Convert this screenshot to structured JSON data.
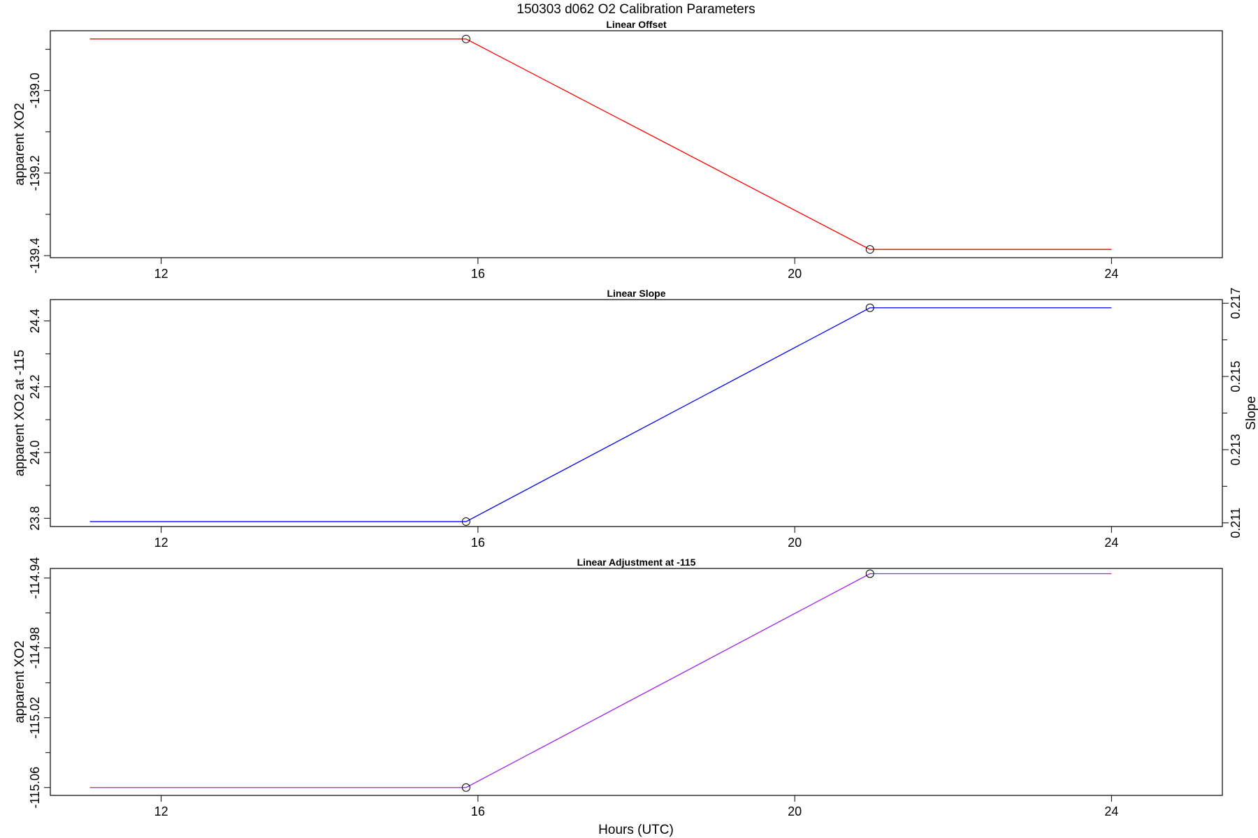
{
  "title": "150303   d062   O2 Calibration Parameters",
  "xlabel": "Hours (UTC)",
  "colors": {
    "offset": "#ff0000",
    "slope": "#0000ff",
    "adjustment": "#a020f0",
    "points": "#000000",
    "frame": "#000000"
  },
  "chart_data": [
    {
      "type": "line",
      "title": "Linear Offset",
      "xlabel": "",
      "ylabel": "apparent XO2",
      "xlim": [
        10.6,
        25.4
      ],
      "ylim": [
        -139.405,
        -138.855
      ],
      "xticks": [
        12,
        16,
        20,
        24
      ],
      "yticks": [
        -139.4,
        -139.2,
        -139.0
      ],
      "yminor": [
        -139.3,
        -139.1,
        -138.9
      ],
      "ytick_labels": [
        "-139.4",
        "-139.2",
        "-139.0"
      ],
      "series": [
        {
          "x": [
            11.1,
            15.85,
            20.95,
            24.0
          ],
          "y": [
            -138.875,
            -138.875,
            -139.385,
            -139.385
          ]
        }
      ],
      "points": {
        "x": [
          15.85,
          20.95
        ],
        "y": [
          -138.875,
          -139.385
        ]
      }
    },
    {
      "type": "line",
      "title": "Linear Slope",
      "xlabel": "",
      "ylabel": "apparent XO2 at -115",
      "ylabel_right": "Slope",
      "xlim": [
        10.6,
        25.4
      ],
      "ylim": [
        23.775,
        24.465
      ],
      "xticks": [
        12,
        16,
        20,
        24
      ],
      "yticks": [
        23.8,
        24.0,
        24.2,
        24.4
      ],
      "yminor": [
        23.9,
        24.1,
        24.3
      ],
      "ytick_labels": [
        "23.8",
        "24.0",
        "24.2",
        "24.4"
      ],
      "right_axis": {
        "lim": [
          0.2109,
          0.2171
        ],
        "ticks": [
          0.211,
          0.213,
          0.215,
          0.217
        ],
        "minor": [
          0.212,
          0.214,
          0.216
        ],
        "labels": [
          "0.211",
          "0.213",
          "0.215",
          "0.217"
        ]
      },
      "series": [
        {
          "x": [
            11.1,
            15.85,
            20.95,
            24.0
          ],
          "y": [
            23.79,
            23.79,
            24.44,
            24.44
          ]
        }
      ],
      "points": {
        "x": [
          15.85,
          20.95
        ],
        "y": [
          23.79,
          24.44
        ]
      }
    },
    {
      "type": "line",
      "title": "Linear Adjustment at -115",
      "xlabel": "Hours (UTC)",
      "ylabel": "apparent XO2",
      "xlim": [
        10.6,
        25.4
      ],
      "ylim": [
        -115.0645,
        -114.9345
      ],
      "xticks": [
        12,
        16,
        20,
        24
      ],
      "yticks": [
        -115.06,
        -115.02,
        -114.98,
        -114.94
      ],
      "yminor": [
        -115.04,
        -115.0,
        -114.96
      ],
      "ytick_labels": [
        "-115.06",
        "-115.02",
        "-114.98",
        "-114.94"
      ],
      "series": [
        {
          "x": [
            11.1,
            15.85,
            20.95,
            24.0
          ],
          "y": [
            -115.06,
            -115.06,
            -114.9375,
            -114.9375
          ]
        }
      ],
      "points": {
        "x": [
          15.85,
          20.95
        ],
        "y": [
          -115.06,
          -114.9375
        ]
      }
    }
  ]
}
